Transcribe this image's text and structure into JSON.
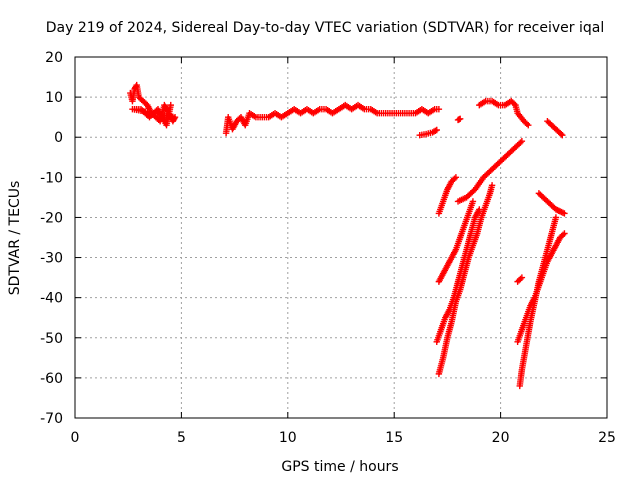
{
  "chart_data": {
    "type": "scatter",
    "title": "Day 219 of 2024, Sidereal Day-to-day VTEC variation (SDTVAR) for receiver iqal",
    "xlabel": "GPS time / hours",
    "ylabel": "SDTVAR / TECUs",
    "xlim": [
      0,
      25
    ],
    "ylim": [
      -70,
      20
    ],
    "xticks": [
      0,
      5,
      10,
      15,
      20,
      25
    ],
    "yticks": [
      20,
      10,
      0,
      -10,
      -20,
      -30,
      -40,
      -50,
      -60,
      -70
    ],
    "grid": true,
    "marker": "plus",
    "color": "#ff0000",
    "series": [
      {
        "points": [
          [
            2.6,
            11
          ],
          [
            2.7,
            9
          ],
          [
            2.8,
            12
          ],
          [
            2.9,
            13
          ],
          [
            3.0,
            10
          ],
          [
            3.2,
            9
          ],
          [
            3.4,
            8
          ],
          [
            3.6,
            6
          ],
          [
            3.8,
            5
          ],
          [
            4.0,
            4
          ],
          [
            4.2,
            8
          ],
          [
            4.4,
            6
          ],
          [
            4.6,
            4
          ],
          [
            4.7,
            5
          ],
          [
            2.7,
            7
          ],
          [
            3.1,
            7
          ],
          [
            3.5,
            5
          ],
          [
            3.9,
            7
          ],
          [
            4.3,
            3
          ],
          [
            4.5,
            8
          ]
        ]
      },
      {
        "points": [
          [
            7.1,
            1
          ],
          [
            7.2,
            5
          ],
          [
            7.4,
            2
          ],
          [
            7.6,
            4
          ],
          [
            7.8,
            5
          ],
          [
            8.0,
            3
          ],
          [
            8.2,
            6
          ],
          [
            8.5,
            5
          ],
          [
            8.8,
            5
          ],
          [
            9.1,
            5
          ],
          [
            9.4,
            6
          ],
          [
            9.7,
            5
          ],
          [
            10.0,
            6
          ],
          [
            10.3,
            7
          ],
          [
            10.6,
            6
          ],
          [
            10.9,
            7
          ],
          [
            11.2,
            6
          ],
          [
            11.5,
            7
          ],
          [
            11.8,
            7
          ],
          [
            12.1,
            6
          ],
          [
            12.4,
            7
          ],
          [
            12.7,
            8
          ],
          [
            13.0,
            7
          ],
          [
            13.3,
            8
          ],
          [
            13.6,
            7
          ],
          [
            13.9,
            7
          ],
          [
            14.2,
            6
          ],
          [
            14.5,
            6
          ],
          [
            14.8,
            6
          ],
          [
            15.1,
            6
          ],
          [
            15.4,
            6
          ],
          [
            15.7,
            6
          ],
          [
            16.0,
            6
          ],
          [
            16.3,
            7
          ],
          [
            16.6,
            6
          ],
          [
            16.9,
            7
          ],
          [
            17.1,
            7
          ]
        ]
      },
      {
        "points": [
          [
            16.2,
            0.5
          ],
          [
            16.5,
            0.8
          ],
          [
            16.8,
            1.2
          ],
          [
            17.0,
            1.8
          ]
        ]
      },
      {
        "points": [
          [
            18.0,
            4.3
          ],
          [
            18.1,
            4.6
          ]
        ]
      },
      {
        "points": [
          [
            19.0,
            8
          ],
          [
            19.3,
            9
          ],
          [
            19.6,
            9
          ],
          [
            19.9,
            8
          ],
          [
            20.2,
            8
          ],
          [
            20.5,
            9
          ],
          [
            20.7,
            8
          ],
          [
            20.8,
            6
          ],
          [
            21.1,
            4
          ],
          [
            21.3,
            3
          ]
        ]
      },
      {
        "points": [
          [
            22.2,
            4
          ],
          [
            22.4,
            3
          ],
          [
            22.6,
            2
          ],
          [
            22.8,
            1
          ],
          [
            22.9,
            0.5
          ]
        ]
      },
      {
        "points": [
          [
            17.1,
            -19
          ],
          [
            17.3,
            -16
          ],
          [
            17.5,
            -13
          ],
          [
            17.7,
            -11
          ],
          [
            17.9,
            -10
          ]
        ]
      },
      {
        "points": [
          [
            17.1,
            -36
          ],
          [
            17.3,
            -34
          ],
          [
            17.5,
            -32
          ],
          [
            17.7,
            -30
          ],
          [
            17.9,
            -28
          ],
          [
            18.1,
            -25
          ],
          [
            18.3,
            -22
          ],
          [
            18.5,
            -19
          ],
          [
            18.7,
            -16
          ]
        ]
      },
      {
        "points": [
          [
            18.0,
            -16
          ],
          [
            18.4,
            -15
          ],
          [
            18.8,
            -13
          ],
          [
            19.2,
            -10
          ],
          [
            19.6,
            -8
          ],
          [
            20.0,
            -6
          ],
          [
            20.4,
            -4
          ],
          [
            20.8,
            -2
          ],
          [
            21.0,
            -1
          ]
        ]
      },
      {
        "points": [
          [
            17.0,
            -51
          ],
          [
            17.2,
            -48
          ],
          [
            17.4,
            -45
          ],
          [
            17.6,
            -43
          ],
          [
            17.8,
            -40
          ],
          [
            18.0,
            -36
          ],
          [
            18.2,
            -32
          ],
          [
            18.4,
            -28
          ],
          [
            18.6,
            -24
          ],
          [
            18.8,
            -20
          ],
          [
            19.0,
            -18
          ]
        ]
      },
      {
        "points": [
          [
            17.1,
            -59
          ],
          [
            17.3,
            -55
          ],
          [
            17.5,
            -50
          ],
          [
            17.7,
            -46
          ],
          [
            17.9,
            -41
          ],
          [
            18.1,
            -38
          ],
          [
            18.3,
            -34
          ],
          [
            18.5,
            -30
          ],
          [
            18.7,
            -27
          ],
          [
            18.9,
            -24
          ],
          [
            19.1,
            -20
          ],
          [
            19.3,
            -17
          ],
          [
            19.5,
            -14
          ],
          [
            19.6,
            -12
          ]
        ]
      },
      {
        "points": [
          [
            20.8,
            -36
          ],
          [
            21.0,
            -35
          ]
        ]
      },
      {
        "points": [
          [
            20.9,
            -62
          ],
          [
            21.0,
            -58
          ],
          [
            21.2,
            -52
          ],
          [
            21.4,
            -46
          ],
          [
            21.6,
            -41
          ],
          [
            21.8,
            -36
          ],
          [
            22.0,
            -32
          ],
          [
            22.2,
            -28
          ],
          [
            22.4,
            -24
          ],
          [
            22.6,
            -20
          ]
        ]
      },
      {
        "points": [
          [
            20.8,
            -51
          ],
          [
            21.0,
            -48
          ],
          [
            21.2,
            -45
          ],
          [
            21.4,
            -42
          ],
          [
            21.6,
            -40
          ],
          [
            21.8,
            -37
          ],
          [
            22.0,
            -34
          ],
          [
            22.2,
            -31
          ],
          [
            22.4,
            -29
          ],
          [
            22.6,
            -27
          ],
          [
            22.8,
            -25
          ],
          [
            23.0,
            -24
          ]
        ]
      },
      {
        "points": [
          [
            21.8,
            -14
          ],
          [
            22.0,
            -15
          ],
          [
            22.2,
            -16
          ],
          [
            22.4,
            -17
          ],
          [
            22.6,
            -18
          ],
          [
            22.8,
            -18.5
          ],
          [
            23.0,
            -19
          ]
        ]
      }
    ]
  }
}
